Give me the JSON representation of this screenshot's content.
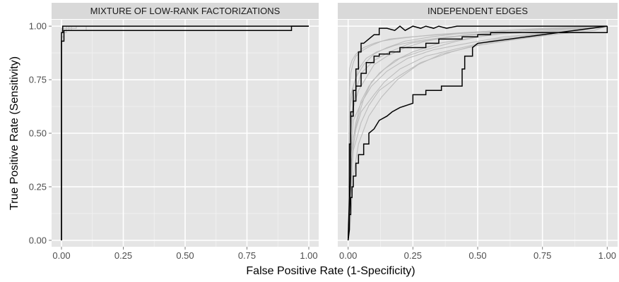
{
  "chart_data": [
    {
      "type": "line",
      "panel": "MIXTURE OF LOW-RANK FACTORIZATIONS",
      "xlabel": "False Positive Rate (1-Specificity)",
      "ylabel": "True Positive Rate (Sensitivity)",
      "xlim": [
        -0.04,
        1.04
      ],
      "ylim": [
        -0.03,
        1.03
      ],
      "xticks": [
        "0.00",
        "0.25",
        "0.50",
        "0.75",
        "1.00"
      ],
      "yticks": [
        "0.00",
        "0.25",
        "0.50",
        "0.75",
        "1.00"
      ],
      "grid": true,
      "series": [
        {
          "color": "#bdbdbd",
          "x": [
            0,
            0,
            0.01,
            0.01,
            0.03,
            0.03,
            1.0
          ],
          "y": [
            0,
            0.95,
            0.95,
            0.98,
            0.98,
            1.0,
            1.0
          ]
        },
        {
          "color": "#bdbdbd",
          "x": [
            0,
            0,
            0.02,
            0.02,
            1.0
          ],
          "y": [
            0,
            0.97,
            0.97,
            1.0,
            1.0
          ]
        },
        {
          "color": "#bdbdbd",
          "x": [
            0,
            0,
            0.04,
            0.04,
            1.0
          ],
          "y": [
            0,
            0.98,
            0.98,
            1.0,
            1.0
          ]
        },
        {
          "color": "#bdbdbd",
          "x": [
            0,
            0,
            0.06,
            0.06,
            1.0
          ],
          "y": [
            0,
            0.99,
            0.99,
            1.0,
            1.0
          ]
        },
        {
          "color": "#bdbdbd",
          "x": [
            0,
            0,
            0.1,
            0.1,
            1.0
          ],
          "y": [
            0,
            0.98,
            0.98,
            1.0,
            1.0
          ]
        },
        {
          "color": "#000000",
          "x": [
            0,
            0,
            0.005,
            0.005,
            1.0
          ],
          "y": [
            0,
            0.97,
            0.97,
            1.0,
            1.0
          ]
        },
        {
          "color": "#000000",
          "x": [
            0,
            0,
            0.01,
            0.01,
            0.93,
            0.93,
            1.0
          ],
          "y": [
            0,
            0.93,
            0.93,
            0.98,
            0.98,
            1.0,
            1.0
          ]
        }
      ]
    },
    {
      "type": "line",
      "panel": "INDEPENDENT EDGES",
      "xlabel": "False Positive Rate (1-Specificity)",
      "ylabel": "True Positive Rate (Sensitivity)",
      "xlim": [
        -0.04,
        1.04
      ],
      "ylim": [
        -0.03,
        1.03
      ],
      "xticks": [
        "0.00",
        "0.25",
        "0.50",
        "0.75",
        "1.00"
      ],
      "yticks": [
        "0.00",
        "0.25",
        "0.50",
        "0.75",
        "1.00"
      ],
      "grid": true,
      "series": [
        {
          "color": "#bdbdbd",
          "x": [
            0,
            0.01,
            0.01,
            0.03,
            0.05,
            0.08,
            0.12,
            0.18,
            0.25,
            0.35,
            0.5,
            0.7,
            1.0
          ],
          "y": [
            0,
            0.15,
            0.4,
            0.55,
            0.65,
            0.72,
            0.78,
            0.84,
            0.88,
            0.92,
            0.95,
            0.98,
            1.0
          ]
        },
        {
          "color": "#bdbdbd",
          "x": [
            0,
            0.005,
            0.01,
            0.02,
            0.04,
            0.07,
            0.1,
            0.15,
            0.22,
            0.3,
            0.45,
            0.6,
            0.85,
            1.0
          ],
          "y": [
            0,
            0.25,
            0.5,
            0.62,
            0.7,
            0.76,
            0.82,
            0.86,
            0.9,
            0.93,
            0.96,
            0.97,
            0.99,
            1.0
          ]
        },
        {
          "color": "#bdbdbd",
          "x": [
            0,
            0.01,
            0.02,
            0.04,
            0.06,
            0.09,
            0.14,
            0.2,
            0.3,
            0.42,
            0.55,
            0.8,
            1.0
          ],
          "y": [
            0,
            0.3,
            0.48,
            0.58,
            0.66,
            0.74,
            0.8,
            0.85,
            0.89,
            0.93,
            0.96,
            0.98,
            1.0
          ]
        },
        {
          "color": "#bdbdbd",
          "x": [
            0,
            0.005,
            0.015,
            0.03,
            0.05,
            0.1,
            0.16,
            0.24,
            0.34,
            0.48,
            0.62,
            0.9,
            1.0
          ],
          "y": [
            0,
            0.45,
            0.6,
            0.7,
            0.78,
            0.84,
            0.88,
            0.92,
            0.94,
            0.96,
            0.98,
            0.99,
            1.0
          ]
        },
        {
          "color": "#bdbdbd",
          "x": [
            0,
            0.01,
            0.02,
            0.05,
            0.08,
            0.12,
            0.2,
            0.28,
            0.4,
            0.52,
            0.7,
            0.95,
            1.0
          ],
          "y": [
            0,
            0.2,
            0.42,
            0.55,
            0.63,
            0.7,
            0.77,
            0.83,
            0.88,
            0.92,
            0.95,
            0.98,
            1.0
          ]
        },
        {
          "color": "#bdbdbd",
          "x": [
            0,
            0.005,
            0.01,
            0.03,
            0.06,
            0.1,
            0.15,
            0.22,
            0.32,
            0.46,
            0.6,
            0.75,
            1.0
          ],
          "y": [
            0,
            0.55,
            0.68,
            0.76,
            0.82,
            0.87,
            0.9,
            0.93,
            0.95,
            0.97,
            0.98,
            0.99,
            1.0
          ]
        },
        {
          "color": "#bdbdbd",
          "x": [
            0,
            0.01,
            0.03,
            0.05,
            0.1,
            0.14,
            0.2,
            0.3,
            0.44,
            0.58,
            0.8,
            1.0
          ],
          "y": [
            0,
            0.35,
            0.52,
            0.6,
            0.68,
            0.74,
            0.8,
            0.86,
            0.9,
            0.94,
            0.97,
            1.0
          ]
        },
        {
          "color": "#bdbdbd",
          "x": [
            0,
            0.005,
            0.02,
            0.04,
            0.07,
            0.11,
            0.18,
            0.26,
            0.38,
            0.5,
            0.68,
            0.88,
            1.0
          ],
          "y": [
            0,
            0.6,
            0.72,
            0.8,
            0.85,
            0.88,
            0.91,
            0.93,
            0.95,
            0.96,
            0.97,
            0.98,
            1.0
          ]
        },
        {
          "color": "#bdbdbd",
          "x": [
            0,
            0.01,
            0.02,
            0.04,
            0.08,
            0.13,
            0.19,
            0.27,
            0.36,
            0.5,
            0.66,
            0.85,
            1.0
          ],
          "y": [
            0,
            0.1,
            0.3,
            0.45,
            0.58,
            0.67,
            0.75,
            0.82,
            0.87,
            0.91,
            0.94,
            0.97,
            1.0
          ]
        },
        {
          "color": "#bdbdbd",
          "x": [
            0,
            0.005,
            0.01,
            0.02,
            0.03,
            0.06,
            0.09,
            0.13,
            0.18,
            0.25,
            0.33,
            0.45,
            0.6,
            0.8,
            1.0
          ],
          "y": [
            0,
            0.7,
            0.78,
            0.83,
            0.86,
            0.89,
            0.91,
            0.93,
            0.94,
            0.95,
            0.96,
            0.97,
            0.98,
            0.99,
            1.0
          ]
        },
        {
          "color": "#bdbdbd",
          "x": [
            0,
            0.01,
            0.02,
            0.05,
            0.09,
            0.15,
            0.23,
            0.33,
            0.46,
            0.6,
            0.78,
            1.0
          ],
          "y": [
            0,
            0.4,
            0.56,
            0.64,
            0.72,
            0.79,
            0.85,
            0.89,
            0.92,
            0.95,
            0.97,
            1.0
          ]
        },
        {
          "color": "#bdbdbd",
          "x": [
            0,
            0.005,
            0.015,
            0.03,
            0.06,
            0.1,
            0.16,
            0.24,
            0.35,
            0.5,
            0.64,
            0.82,
            1.0
          ],
          "y": [
            0,
            0.8,
            0.84,
            0.87,
            0.9,
            0.92,
            0.94,
            0.95,
            0.96,
            0.97,
            0.975,
            0.985,
            1.0
          ]
        },
        {
          "color": "#000000",
          "x": [
            0,
            0.01,
            0.01,
            0.02,
            0.02,
            0.03,
            0.03,
            0.04,
            0.04,
            0.05,
            0.05,
            0.06,
            0.08,
            0.1,
            0.12,
            0.12,
            0.15,
            0.18,
            0.2,
            0.22,
            0.25,
            0.28,
            0.3,
            0.33,
            0.35,
            0.38,
            0.42,
            0.45,
            0.5,
            0.55,
            0.6,
            0.7,
            0.8,
            0.9,
            1.0
          ],
          "y": [
            0,
            0.3,
            0.6,
            0.6,
            0.7,
            0.7,
            0.8,
            0.8,
            0.88,
            0.88,
            0.92,
            0.92,
            0.94,
            0.96,
            0.96,
            0.99,
            0.99,
            0.98,
            1.0,
            0.98,
            1.0,
            0.99,
            1.0,
            0.99,
            1.0,
            0.99,
            1.0,
            1.0,
            1.0,
            1.0,
            1.0,
            1.0,
            1.0,
            1.0,
            1.0
          ]
        },
        {
          "color": "#000000",
          "x": [
            0,
            0.005,
            0.005,
            0.01,
            0.01,
            0.02,
            0.02,
            0.03,
            0.03,
            0.05,
            0.05,
            0.07,
            0.07,
            0.1,
            0.1,
            0.12,
            0.12,
            0.16,
            0.16,
            0.2,
            0.2,
            0.3,
            0.3,
            0.35,
            0.35,
            0.44,
            0.44,
            0.5,
            0.5,
            0.55,
            0.55,
            0.6,
            0.6,
            1.0,
            1.0
          ],
          "y": [
            0,
            0.2,
            0.45,
            0.45,
            0.58,
            0.58,
            0.65,
            0.65,
            0.72,
            0.72,
            0.78,
            0.78,
            0.83,
            0.83,
            0.86,
            0.86,
            0.87,
            0.87,
            0.88,
            0.88,
            0.9,
            0.9,
            0.92,
            0.92,
            0.94,
            0.94,
            0.95,
            0.95,
            0.96,
            0.96,
            0.97,
            0.97,
            0.97,
            0.97,
            1.0
          ]
        },
        {
          "color": "#000000",
          "x": [
            0,
            0.005,
            0.005,
            0.01,
            0.01,
            0.015,
            0.015,
            0.02,
            0.02,
            0.03,
            0.03,
            0.04,
            0.04,
            0.06,
            0.06,
            0.08,
            0.08,
            0.1,
            0.12,
            0.15,
            0.17,
            0.2,
            0.25,
            0.25,
            0.3,
            0.3,
            0.32,
            0.36,
            0.36,
            0.44,
            0.44,
            0.45,
            0.45,
            0.48,
            0.48,
            0.5,
            1.0
          ],
          "y": [
            0,
            0.05,
            0.12,
            0.12,
            0.2,
            0.2,
            0.25,
            0.25,
            0.3,
            0.3,
            0.36,
            0.36,
            0.4,
            0.4,
            0.45,
            0.45,
            0.5,
            0.52,
            0.56,
            0.58,
            0.6,
            0.62,
            0.64,
            0.68,
            0.68,
            0.7,
            0.7,
            0.7,
            0.72,
            0.72,
            0.8,
            0.8,
            0.86,
            0.86,
            0.9,
            0.92,
            1.0
          ]
        }
      ]
    }
  ]
}
